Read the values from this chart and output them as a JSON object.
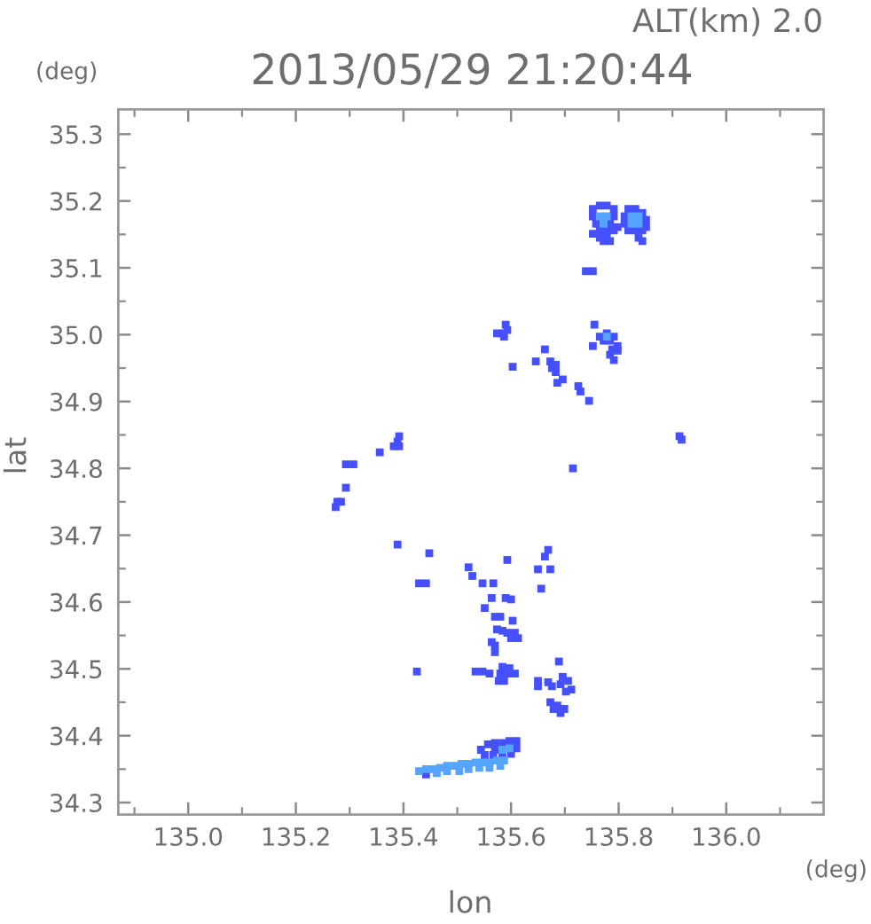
{
  "chart_data": {
    "type": "scatter",
    "title": "2013/05/29 21:20:44",
    "subtitle": "ALT(km) 2.0",
    "xlabel": "lon",
    "ylabel": "lat",
    "annotations": [
      "(deg)",
      "(deg)"
    ],
    "marker": "square",
    "xlim": [
      134.87,
      136.181
    ],
    "ylim": [
      34.282,
      35.337
    ],
    "xticks": [
      {
        "value": 134.9,
        "label": null
      },
      {
        "value": 135,
        "label": "135.0"
      },
      {
        "value": 135.1,
        "label": null
      },
      135.2,
      {
        "value": 135.3,
        "label": null
      },
      135.4,
      {
        "value": 135.5,
        "label": null
      },
      135.6,
      {
        "value": 135.7,
        "label": null
      },
      135.8,
      {
        "value": 135.9,
        "label": null
      },
      {
        "value": 136,
        "label": "136.0"
      },
      {
        "value": 136.1,
        "label": null
      }
    ],
    "yticks": [
      34.3,
      {
        "value": 34.35,
        "label": null
      },
      34.4,
      {
        "value": 34.45,
        "label": null
      },
      34.5,
      {
        "value": 34.55,
        "label": null
      },
      34.6,
      {
        "value": 34.65,
        "label": null
      },
      34.7,
      {
        "value": 34.75,
        "label": null
      },
      34.8,
      {
        "value": 34.85,
        "label": null
      },
      34.9,
      {
        "value": 34.95,
        "label": null
      },
      {
        "value": 35,
        "label": "35.0"
      },
      {
        "value": 35.05,
        "label": null
      },
      35.1,
      {
        "value": 35.15,
        "label": null
      },
      35.2,
      {
        "value": 35.25,
        "label": null
      },
      35.3
    ],
    "series": [
      {
        "color": "#4650fa",
        "x": [
          135.752,
          135.765,
          135.778,
          135.791,
          135.752,
          135.791,
          135.758,
          135.784,
          135.798,
          135.765,
          135.778,
          135.791,
          135.818,
          135.831,
          135.844,
          135.811,
          135.851,
          135.811,
          135.851,
          135.818,
          135.831,
          135.844,
          135.837,
          135.844,
          135.752,
          135.765,
          135.778,
          135.772,
          135.784,
          135.739,
          135.752,
          135.59,
          135.593,
          135.584,
          135.574,
          135.587,
          135.755,
          135.765,
          135.778,
          135.791,
          135.772,
          135.784,
          135.798,
          135.788,
          135.798,
          135.784,
          135.791,
          135.752,
          135.663,
          135.673,
          135.683,
          135.676,
          135.683,
          135.603,
          135.686,
          135.696,
          135.725,
          135.729,
          135.745,
          135.913,
          135.917,
          135.392,
          135.389,
          135.382,
          135.392,
          135.356,
          135.293,
          135.307,
          135.293,
          135.277,
          135.284,
          135.274,
          135.715,
          135.646,
          135.389,
          135.448,
          135.429,
          135.442,
          135.521,
          135.528,
          135.593,
          135.669,
          135.663,
          135.673,
          135.65,
          135.656,
          135.547,
          135.567,
          135.564,
          135.59,
          135.6,
          135.551,
          135.57,
          135.58,
          135.603,
          135.574,
          135.584,
          135.593,
          135.607,
          135.6,
          135.613,
          135.564,
          135.57,
          135.57,
          135.534,
          135.547,
          135.56,
          135.584,
          135.597,
          135.58,
          135.593,
          135.607,
          135.587,
          135.577,
          135.425,
          135.65,
          135.65,
          135.669,
          135.676,
          135.696,
          135.706,
          135.692,
          135.712,
          135.702,
          135.689,
          135.673,
          135.686,
          135.699,
          135.679,
          135.692,
          135.557,
          135.57,
          135.584,
          135.597,
          135.61,
          135.544,
          135.57,
          135.61,
          135.551,
          135.567,
          135.584,
          135.6,
          135.442
        ],
        "values": [
          35.188,
          35.193,
          35.193,
          35.188,
          35.177,
          35.177,
          35.166,
          35.166,
          35.161,
          35.156,
          35.156,
          35.156,
          35.188,
          35.188,
          35.182,
          35.177,
          35.172,
          35.166,
          35.161,
          35.156,
          35.156,
          35.156,
          35.145,
          35.14,
          35.151,
          35.145,
          35.145,
          35.14,
          35.14,
          35.095,
          35.095,
          35.015,
          35.007,
          35.002,
          35.002,
          34.997,
          35.015,
          34.997,
          35.002,
          34.997,
          34.991,
          34.991,
          34.983,
          34.978,
          34.976,
          34.97,
          34.962,
          34.983,
          34.978,
          34.96,
          34.955,
          34.95,
          34.944,
          34.952,
          34.928,
          34.933,
          34.923,
          34.915,
          34.901,
          34.848,
          34.843,
          34.848,
          34.84,
          34.833,
          34.833,
          34.824,
          34.806,
          34.806,
          34.771,
          34.75,
          34.75,
          34.742,
          34.8,
          34.96,
          34.686,
          34.673,
          34.628,
          34.628,
          34.652,
          34.639,
          34.663,
          34.678,
          34.668,
          34.649,
          34.649,
          34.62,
          34.628,
          34.628,
          34.606,
          34.606,
          34.604,
          34.591,
          34.578,
          34.578,
          34.572,
          34.559,
          34.557,
          34.554,
          34.554,
          34.546,
          34.546,
          34.54,
          34.535,
          34.525,
          34.496,
          34.496,
          34.493,
          34.503,
          34.501,
          34.493,
          34.493,
          34.493,
          34.482,
          34.482,
          34.496,
          34.482,
          34.474,
          34.48,
          34.474,
          34.488,
          34.482,
          34.477,
          34.469,
          34.466,
          34.511,
          34.45,
          34.445,
          34.44,
          34.44,
          34.434,
          34.387,
          34.389,
          34.389,
          34.392,
          34.392,
          34.379,
          34.379,
          34.381,
          34.371,
          34.371,
          34.371,
          34.373,
          34.342
        ]
      },
      {
        "color": "#55a5ff",
        "x": [
          135.765,
          135.778,
          135.772,
          135.824,
          135.837,
          135.824,
          135.837,
          135.778,
          135.584,
          135.597,
          135.429,
          135.442,
          135.455,
          135.468,
          135.481,
          135.495,
          135.508,
          135.521,
          135.534,
          135.547,
          135.56,
          135.574,
          135.587,
          135.462,
          135.481,
          135.504,
          135.521,
          135.541,
          135.56,
          135.58
        ],
        "values": [
          35.177,
          35.177,
          35.166,
          35.177,
          35.177,
          35.166,
          35.166,
          34.997,
          34.379,
          34.381,
          34.347,
          34.35,
          34.35,
          34.352,
          34.355,
          34.355,
          34.358,
          34.358,
          34.36,
          34.36,
          34.36,
          34.363,
          34.363,
          34.344,
          34.347,
          34.347,
          34.35,
          34.352,
          34.352,
          34.355
        ]
      }
    ]
  }
}
